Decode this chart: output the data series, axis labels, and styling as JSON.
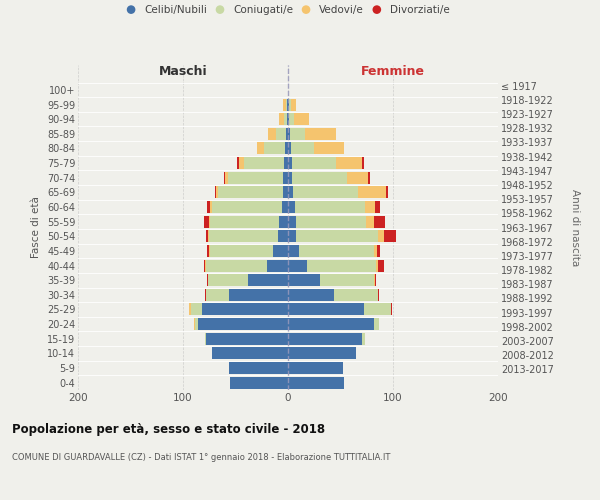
{
  "age_groups": [
    "0-4",
    "5-9",
    "10-14",
    "15-19",
    "20-24",
    "25-29",
    "30-34",
    "35-39",
    "40-44",
    "45-49",
    "50-54",
    "55-59",
    "60-64",
    "65-69",
    "70-74",
    "75-79",
    "80-84",
    "85-89",
    "90-94",
    "95-99",
    "100+"
  ],
  "birth_years": [
    "2013-2017",
    "2008-2012",
    "2003-2007",
    "1998-2002",
    "1993-1997",
    "1988-1992",
    "1983-1987",
    "1978-1982",
    "1973-1977",
    "1968-1972",
    "1963-1967",
    "1958-1962",
    "1953-1957",
    "1948-1952",
    "1943-1947",
    "1938-1942",
    "1933-1937",
    "1928-1932",
    "1923-1927",
    "1918-1922",
    "≤ 1917"
  ],
  "male_celibi": [
    55,
    56,
    72,
    78,
    86,
    82,
    56,
    38,
    20,
    14,
    10,
    9,
    6,
    5,
    5,
    4,
    3,
    2,
    1,
    1,
    0
  ],
  "male_coniugati": [
    0,
    0,
    0,
    1,
    3,
    10,
    22,
    38,
    58,
    60,
    65,
    65,
    66,
    62,
    52,
    38,
    20,
    9,
    3,
    1,
    0
  ],
  "male_vedovi": [
    0,
    0,
    0,
    0,
    1,
    2,
    0,
    0,
    1,
    1,
    1,
    1,
    2,
    2,
    3,
    5,
    7,
    8,
    5,
    3,
    0
  ],
  "male_divorziati": [
    0,
    0,
    0,
    0,
    0,
    0,
    1,
    1,
    1,
    2,
    2,
    5,
    3,
    1,
    1,
    2,
    0,
    0,
    0,
    0,
    0
  ],
  "female_nubili": [
    53,
    52,
    65,
    70,
    82,
    72,
    44,
    30,
    18,
    10,
    8,
    8,
    7,
    5,
    4,
    4,
    3,
    2,
    1,
    1,
    0
  ],
  "female_coniugate": [
    0,
    0,
    0,
    3,
    5,
    26,
    42,
    52,
    66,
    72,
    78,
    66,
    66,
    62,
    52,
    42,
    22,
    14,
    5,
    2,
    0
  ],
  "female_vedove": [
    0,
    0,
    0,
    0,
    0,
    0,
    0,
    1,
    2,
    3,
    5,
    8,
    10,
    26,
    20,
    24,
    28,
    30,
    14,
    5,
    0
  ],
  "female_divorziate": [
    0,
    0,
    0,
    0,
    0,
    1,
    1,
    1,
    5,
    3,
    12,
    10,
    5,
    2,
    2,
    2,
    0,
    0,
    0,
    0,
    0
  ],
  "colors_celibi": "#4472a8",
  "colors_coniugati": "#c8d9a4",
  "colors_vedovi": "#f5c46e",
  "colors_divorziati": "#cc2222",
  "title": "Popolazione per età, sesso e stato civile - 2018",
  "subtitle": "COMUNE DI GUARDAVALLE (CZ) - Dati ISTAT 1° gennaio 2018 - Elaborazione TUTTITALIA.IT",
  "ylabel": "Fasce di età",
  "right_ylabel": "Anni di nascita",
  "xlabel_maschi": "Maschi",
  "xlabel_femmine": "Femmine",
  "xlim": 200,
  "bg_color": "#f0f0eb",
  "bar_height": 0.82,
  "legend_labels": [
    "Celibi/Nubili",
    "Coniugati/e",
    "Vedovi/e",
    "Divorziati/e"
  ]
}
